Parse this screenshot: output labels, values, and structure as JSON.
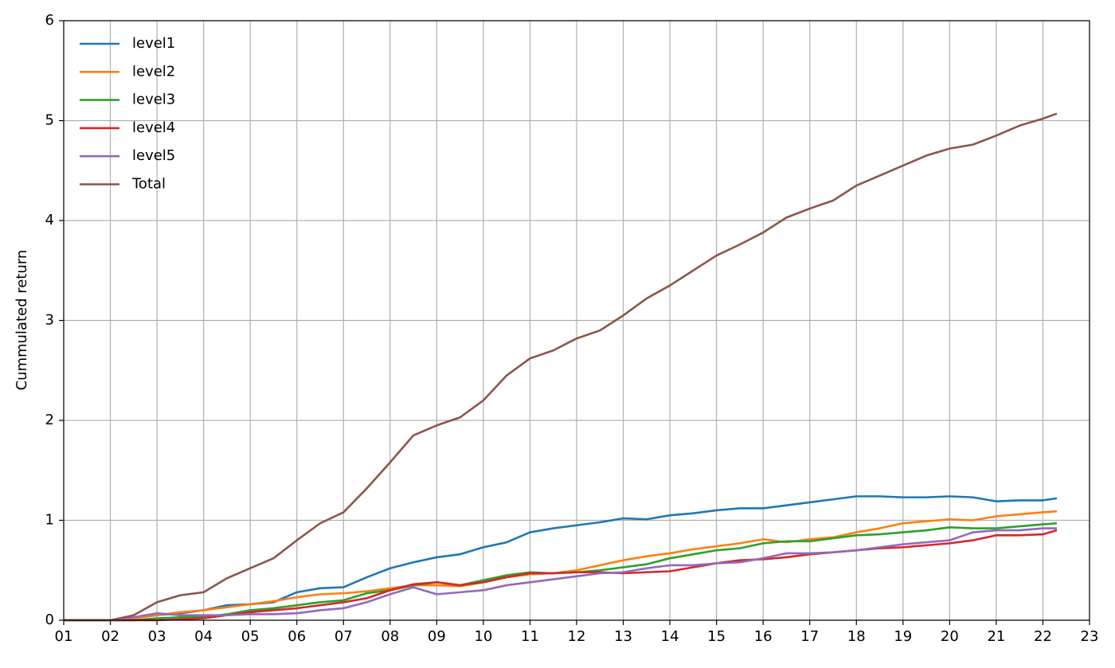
{
  "chart_data": {
    "type": "line",
    "ylabel": "Cummulated return",
    "x": [
      1,
      1.5,
      2,
      2.5,
      3,
      3.5,
      4,
      4.5,
      5,
      5.5,
      6,
      6.5,
      7,
      7.5,
      8,
      8.5,
      9,
      9.5,
      10,
      10.5,
      11,
      11.5,
      12,
      12.5,
      13,
      13.5,
      14,
      14.5,
      15,
      15.5,
      16,
      16.5,
      17,
      17.5,
      18,
      18.5,
      19,
      19.5,
      20,
      20.5,
      21,
      21.5,
      22,
      22.3
    ],
    "series": [
      {
        "name": "level1",
        "color": "#1f77b4",
        "values": [
          0,
          0,
          0,
          0.02,
          0.05,
          0.07,
          0.1,
          0.15,
          0.16,
          0.18,
          0.28,
          0.32,
          0.33,
          0.43,
          0.52,
          0.58,
          0.63,
          0.66,
          0.73,
          0.78,
          0.88,
          0.92,
          0.95,
          0.98,
          1.02,
          1.01,
          1.05,
          1.07,
          1.1,
          1.12,
          1.12,
          1.15,
          1.18,
          1.21,
          1.24,
          1.24,
          1.23,
          1.23,
          1.24,
          1.23,
          1.19,
          1.2,
          1.2,
          1.22
        ]
      },
      {
        "name": "level2",
        "color": "#ff7f0e",
        "values": [
          0,
          0,
          0,
          0.02,
          0.05,
          0.08,
          0.1,
          0.13,
          0.16,
          0.19,
          0.23,
          0.26,
          0.27,
          0.29,
          0.32,
          0.35,
          0.35,
          0.34,
          0.38,
          0.43,
          0.46,
          0.47,
          0.5,
          0.55,
          0.6,
          0.64,
          0.67,
          0.71,
          0.74,
          0.77,
          0.81,
          0.78,
          0.81,
          0.83,
          0.88,
          0.92,
          0.97,
          0.99,
          1.01,
          1.0,
          1.04,
          1.06,
          1.08,
          1.09
        ]
      },
      {
        "name": "level3",
        "color": "#2ca02c",
        "values": [
          0,
          0,
          0,
          0,
          0.02,
          0.03,
          0.03,
          0.06,
          0.1,
          0.12,
          0.15,
          0.18,
          0.2,
          0.27,
          0.3,
          0.35,
          0.38,
          0.35,
          0.4,
          0.45,
          0.48,
          0.47,
          0.48,
          0.5,
          0.53,
          0.56,
          0.62,
          0.66,
          0.7,
          0.72,
          0.77,
          0.79,
          0.79,
          0.82,
          0.85,
          0.86,
          0.88,
          0.9,
          0.93,
          0.92,
          0.92,
          0.94,
          0.96,
          0.97
        ]
      },
      {
        "name": "level4",
        "color": "#d62728",
        "values": [
          0,
          0,
          0,
          0,
          0,
          0.01,
          0.02,
          0.05,
          0.08,
          0.1,
          0.12,
          0.15,
          0.18,
          0.22,
          0.3,
          0.36,
          0.38,
          0.35,
          0.38,
          0.43,
          0.47,
          0.47,
          0.48,
          0.48,
          0.47,
          0.48,
          0.49,
          0.53,
          0.57,
          0.6,
          0.61,
          0.63,
          0.66,
          0.68,
          0.7,
          0.72,
          0.73,
          0.75,
          0.77,
          0.8,
          0.85,
          0.85,
          0.86,
          0.9
        ]
      },
      {
        "name": "level5",
        "color": "#9467bd",
        "values": [
          0,
          0,
          0,
          0.03,
          0.07,
          0.05,
          0.05,
          0.05,
          0.06,
          0.06,
          0.07,
          0.1,
          0.12,
          0.18,
          0.26,
          0.33,
          0.26,
          0.28,
          0.3,
          0.35,
          0.38,
          0.41,
          0.44,
          0.47,
          0.48,
          0.52,
          0.55,
          0.55,
          0.57,
          0.58,
          0.62,
          0.67,
          0.67,
          0.68,
          0.7,
          0.73,
          0.76,
          0.78,
          0.8,
          0.88,
          0.9,
          0.9,
          0.92,
          0.92
        ]
      },
      {
        "name": "Total",
        "color": "#8c564b",
        "values": [
          0,
          0,
          0,
          0.05,
          0.18,
          0.25,
          0.28,
          0.42,
          0.52,
          0.62,
          0.8,
          0.97,
          1.08,
          1.32,
          1.58,
          1.85,
          1.95,
          2.03,
          2.2,
          2.45,
          2.62,
          2.7,
          2.82,
          2.9,
          3.05,
          3.22,
          3.35,
          3.5,
          3.65,
          3.76,
          3.88,
          4.03,
          4.12,
          4.2,
          4.35,
          4.45,
          4.55,
          4.65,
          4.72,
          4.76,
          4.85,
          4.95,
          5.02,
          5.07
        ]
      }
    ],
    "xlim": [
      1,
      23
    ],
    "xticks": [
      {
        "value": 1,
        "label": "01"
      },
      {
        "value": 2,
        "label": "02"
      },
      {
        "value": 3,
        "label": "03"
      },
      {
        "value": 4,
        "label": "04"
      },
      {
        "value": 5,
        "label": "05"
      },
      {
        "value": 6,
        "label": "06"
      },
      {
        "value": 7,
        "label": "07"
      },
      {
        "value": 8,
        "label": "08"
      },
      {
        "value": 9,
        "label": "09"
      },
      10,
      11,
      12,
      13,
      14,
      15,
      16,
      17,
      18,
      19,
      20,
      21,
      22,
      23
    ],
    "ylim": [
      0,
      6
    ],
    "yticks": [
      0,
      1,
      2,
      3,
      4,
      5,
      6
    ],
    "grid": true,
    "legend": "upper-left"
  }
}
